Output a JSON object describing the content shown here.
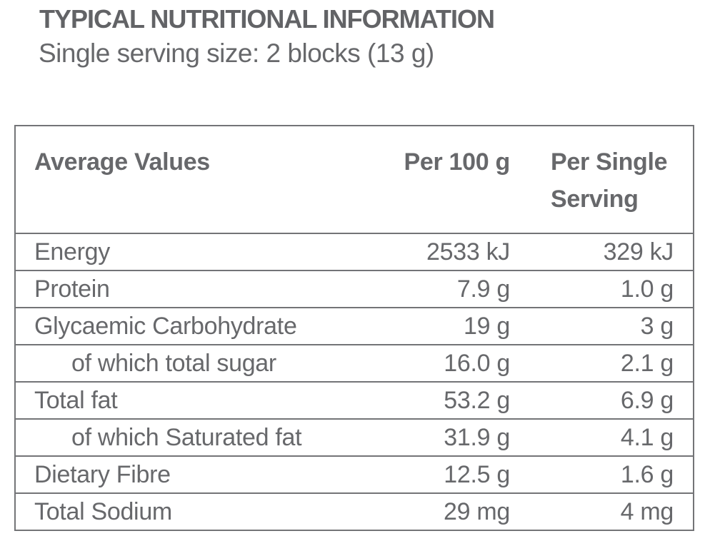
{
  "title": "TYPICAL NUTRITIONAL INFORMATION",
  "subtitle": "Single serving size: 2 blocks (13 g)",
  "table": {
    "headers": {
      "label": "Average Values",
      "per_100g": "Per 100 g",
      "per_serving": "Per Single Serving"
    },
    "rows": [
      {
        "label": "Energy",
        "per_100g": "2533 kJ",
        "per_serving": "329 kJ",
        "indent": false
      },
      {
        "label": "Protein",
        "per_100g": "7.9 g",
        "per_serving": "1.0 g",
        "indent": false
      },
      {
        "label": "Glycaemic Carbohydrate",
        "per_100g": "19 g",
        "per_serving": "3 g",
        "indent": false
      },
      {
        "label": "of which total sugar",
        "per_100g": "16.0 g",
        "per_serving": "2.1 g",
        "indent": true
      },
      {
        "label": "Total fat",
        "per_100g": "53.2 g",
        "per_serving": "6.9 g",
        "indent": false
      },
      {
        "label": "of which Saturated fat",
        "per_100g": "31.9 g",
        "per_serving": "4.1 g",
        "indent": true
      },
      {
        "label": "Dietary Fibre",
        "per_100g": "12.5 g",
        "per_serving": "1.6 g",
        "indent": false
      },
      {
        "label": "Total Sodium",
        "per_100g": "29 mg",
        "per_serving": "4 mg",
        "indent": false
      }
    ]
  },
  "colors": {
    "text": "#67686b",
    "title_text": "#626366",
    "border": "#737477",
    "background": "#ffffff"
  }
}
